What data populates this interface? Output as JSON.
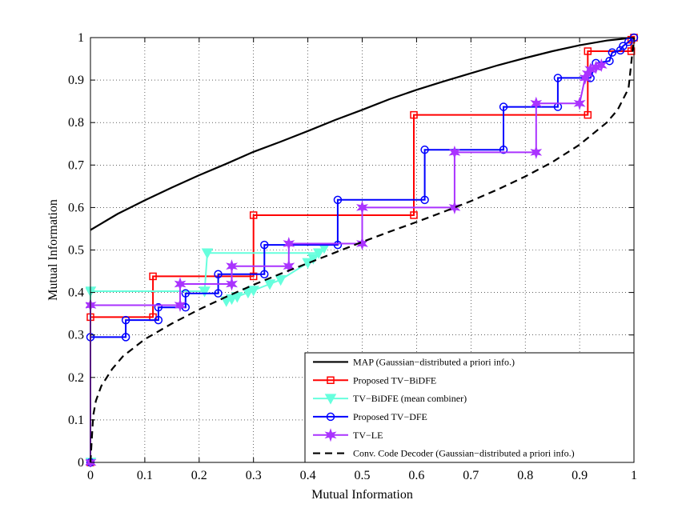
{
  "chart_data": {
    "type": "line",
    "title": "",
    "xlabel": "Mutual Information",
    "ylabel": "Mutual Information",
    "xlim": [
      0,
      1
    ],
    "ylim": [
      0,
      1
    ],
    "grid": true,
    "legend_position": "bottom-right",
    "xticks": [
      "0",
      "0.1",
      "0.2",
      "0.3",
      "0.4",
      "0.5",
      "0.6",
      "0.7",
      "0.8",
      "0.9",
      "1"
    ],
    "yticks": [
      "0",
      "0.1",
      "0.2",
      "0.3",
      "0.4",
      "0.5",
      "0.6",
      "0.7",
      "0.8",
      "0.9",
      "1"
    ],
    "series": [
      {
        "name": "MAP (Gaussian−distributed a priori info.)",
        "color": "#000000",
        "dash": "solid",
        "marker": "none",
        "points": [
          [
            0,
            0.547
          ],
          [
            0.05,
            0.585
          ],
          [
            0.1,
            0.617
          ],
          [
            0.15,
            0.647
          ],
          [
            0.2,
            0.676
          ],
          [
            0.25,
            0.703
          ],
          [
            0.3,
            0.731
          ],
          [
            0.35,
            0.755
          ],
          [
            0.4,
            0.78
          ],
          [
            0.45,
            0.806
          ],
          [
            0.5,
            0.83
          ],
          [
            0.55,
            0.855
          ],
          [
            0.6,
            0.877
          ],
          [
            0.65,
            0.897
          ],
          [
            0.7,
            0.916
          ],
          [
            0.75,
            0.935
          ],
          [
            0.8,
            0.952
          ],
          [
            0.85,
            0.968
          ],
          [
            0.9,
            0.982
          ],
          [
            0.95,
            0.993
          ],
          [
            1,
            1
          ]
        ]
      },
      {
        "name": "Proposed TV−BiDFE",
        "color": "#ff0000",
        "dash": "solid",
        "marker": "square",
        "points": [
          [
            0,
            0
          ],
          [
            0,
            0.342
          ],
          [
            0.115,
            0.342
          ],
          [
            0.115,
            0.438
          ],
          [
            0.3,
            0.438
          ],
          [
            0.3,
            0.582
          ],
          [
            0.595,
            0.582
          ],
          [
            0.595,
            0.818
          ],
          [
            0.915,
            0.818
          ],
          [
            0.915,
            0.968
          ],
          [
            0.995,
            0.968
          ],
          [
            0.995,
            0.995
          ],
          [
            1,
            1
          ]
        ]
      },
      {
        "name": "TV−BiDFE (mean combiner)",
        "color": "#66ffdd",
        "dash": "solid",
        "marker": "triangle",
        "points": [
          [
            0,
            0
          ],
          [
            0,
            0.403
          ],
          [
            0.21,
            0.403
          ],
          [
            0.215,
            0.493
          ],
          [
            0.42,
            0.493
          ],
          [
            0.43,
            0.505
          ],
          [
            0.41,
            0.48
          ],
          [
            0.4,
            0.47
          ],
          [
            0.35,
            0.43
          ],
          [
            0.33,
            0.42
          ],
          [
            0.3,
            0.405
          ],
          [
            0.29,
            0.4
          ],
          [
            0.27,
            0.39
          ],
          [
            0.26,
            0.385
          ],
          [
            0.25,
            0.38
          ]
        ]
      },
      {
        "name": "Proposed TV−DFE",
        "color": "#0000ff",
        "dash": "solid",
        "marker": "circle",
        "points": [
          [
            0,
            0
          ],
          [
            0,
            0.295
          ],
          [
            0.065,
            0.295
          ],
          [
            0.065,
            0.335
          ],
          [
            0.125,
            0.335
          ],
          [
            0.125,
            0.365
          ],
          [
            0.175,
            0.365
          ],
          [
            0.175,
            0.398
          ],
          [
            0.235,
            0.398
          ],
          [
            0.235,
            0.443
          ],
          [
            0.32,
            0.443
          ],
          [
            0.32,
            0.512
          ],
          [
            0.455,
            0.512
          ],
          [
            0.455,
            0.618
          ],
          [
            0.615,
            0.618
          ],
          [
            0.615,
            0.736
          ],
          [
            0.76,
            0.736
          ],
          [
            0.76,
            0.837
          ],
          [
            0.86,
            0.837
          ],
          [
            0.86,
            0.905
          ],
          [
            0.92,
            0.905
          ],
          [
            0.93,
            0.94
          ],
          [
            0.955,
            0.945
          ],
          [
            0.96,
            0.965
          ],
          [
            0.975,
            0.97
          ],
          [
            0.98,
            0.98
          ],
          [
            0.99,
            0.99
          ],
          [
            1,
            1
          ]
        ]
      },
      {
        "name": "TV−LE",
        "color": "#aa33ff",
        "dash": "solid",
        "marker": "star",
        "points": [
          [
            0,
            0
          ],
          [
            0,
            0.37
          ],
          [
            0.165,
            0.37
          ],
          [
            0.165,
            0.42
          ],
          [
            0.26,
            0.42
          ],
          [
            0.26,
            0.462
          ],
          [
            0.365,
            0.462
          ],
          [
            0.365,
            0.515
          ],
          [
            0.5,
            0.515
          ],
          [
            0.5,
            0.6
          ],
          [
            0.67,
            0.6
          ],
          [
            0.67,
            0.73
          ],
          [
            0.82,
            0.73
          ],
          [
            0.82,
            0.845
          ],
          [
            0.9,
            0.845
          ],
          [
            0.91,
            0.905
          ],
          [
            0.915,
            0.915
          ],
          [
            0.92,
            0.925
          ],
          [
            0.93,
            0.93
          ],
          [
            0.94,
            0.935
          ]
        ]
      },
      {
        "name": "Conv. Code Decoder (Gaussian−distributed a priori info.)",
        "color": "#000000",
        "dash": "dashed",
        "marker": "none",
        "points": [
          [
            0,
            0
          ],
          [
            0.005,
            0.11
          ],
          [
            0.01,
            0.145
          ],
          [
            0.02,
            0.18
          ],
          [
            0.04,
            0.22
          ],
          [
            0.06,
            0.25
          ],
          [
            0.1,
            0.29
          ],
          [
            0.15,
            0.327
          ],
          [
            0.2,
            0.36
          ],
          [
            0.25,
            0.39
          ],
          [
            0.3,
            0.418
          ],
          [
            0.35,
            0.444
          ],
          [
            0.4,
            0.469
          ],
          [
            0.45,
            0.494
          ],
          [
            0.5,
            0.519
          ],
          [
            0.55,
            0.543
          ],
          [
            0.6,
            0.566
          ],
          [
            0.65,
            0.59
          ],
          [
            0.7,
            0.615
          ],
          [
            0.75,
            0.643
          ],
          [
            0.8,
            0.673
          ],
          [
            0.85,
            0.707
          ],
          [
            0.9,
            0.748
          ],
          [
            0.95,
            0.8
          ],
          [
            0.97,
            0.83
          ],
          [
            0.99,
            0.88
          ],
          [
            1,
            1
          ]
        ]
      }
    ]
  }
}
